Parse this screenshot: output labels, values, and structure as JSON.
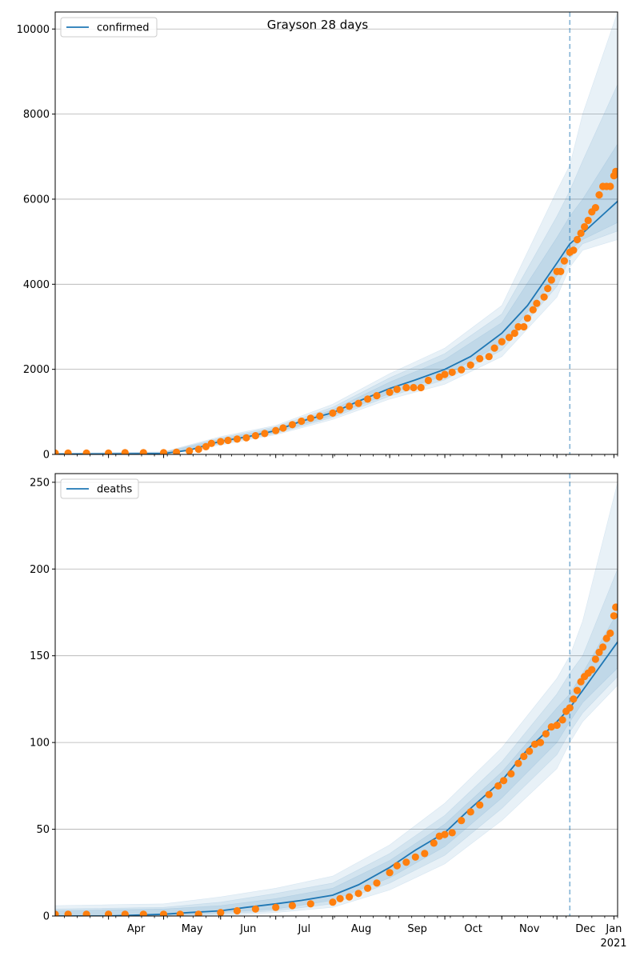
{
  "figure": {
    "title": "Grayson 28 days",
    "xtick_labels": [
      "Apr",
      "May",
      "Jun",
      "Jul",
      "Aug",
      "Sep",
      "Oct",
      "Nov",
      "Dec",
      "Jan"
    ],
    "year_label": "2021"
  },
  "colors": {
    "line": "#1f77b4",
    "band": "#1f77b4",
    "points": "#ff7f0e",
    "grid": "#b0b0b0",
    "vline": "#1f77b4"
  },
  "chart_data": [
    {
      "type": "line",
      "legend": "confirmed",
      "legend_position": "top-left",
      "grid": "horizontal",
      "x_range": [
        "2020-03-03",
        "2021-01-03"
      ],
      "ylim": [
        0,
        10400
      ],
      "yticks": [
        0,
        2000,
        4000,
        6000,
        8000,
        10000
      ],
      "ytick_labels": [
        "0",
        "2000",
        "4000",
        "6000",
        "8000",
        "10000"
      ],
      "forecast_start": "2020-12-08",
      "line": {
        "dates": [
          "2020-03-03",
          "2020-04-01",
          "2020-05-01",
          "2020-05-15",
          "2020-06-01",
          "2020-06-15",
          "2020-07-01",
          "2020-07-15",
          "2020-08-01",
          "2020-08-15",
          "2020-09-01",
          "2020-09-15",
          "2020-10-01",
          "2020-10-15",
          "2020-11-01",
          "2020-11-15",
          "2020-12-01",
          "2020-12-08",
          "2020-12-15",
          "2021-01-03"
        ],
        "values": [
          5,
          10,
          20,
          100,
          310,
          410,
          560,
          780,
          980,
          1250,
          1550,
          1750,
          2000,
          2300,
          2850,
          3500,
          4500,
          4950,
          5200,
          5950
        ]
      },
      "bands": [
        {
          "dates": [
            "2020-03-03",
            "2020-05-01",
            "2020-06-01",
            "2020-07-01",
            "2020-08-01",
            "2020-09-01",
            "2020-10-01",
            "2020-11-01",
            "2020-12-01",
            "2020-12-08",
            "2020-12-15",
            "2021-01-03"
          ],
          "lower": [
            0,
            0,
            220,
            460,
            820,
            1300,
            1650,
            2300,
            3700,
            4400,
            4800,
            5050
          ],
          "upper": [
            30,
            60,
            420,
            680,
            1180,
            1900,
            2500,
            3500,
            6200,
            6800,
            8000,
            10400
          ]
        },
        {
          "dates": [
            "2020-03-03",
            "2020-05-01",
            "2020-06-01",
            "2020-07-01",
            "2020-08-01",
            "2020-09-01",
            "2020-10-01",
            "2020-11-01",
            "2020-12-01",
            "2020-12-08",
            "2020-12-15",
            "2021-01-03"
          ],
          "lower": [
            0,
            0,
            250,
            490,
            870,
            1370,
            1750,
            2450,
            3950,
            4600,
            4950,
            5250
          ],
          "upper": [
            25,
            50,
            390,
            650,
            1110,
            1800,
            2370,
            3300,
            5600,
            6200,
            6900,
            8700
          ]
        },
        {
          "dates": [
            "2020-03-03",
            "2020-05-01",
            "2020-06-01",
            "2020-07-01",
            "2020-08-01",
            "2020-09-01",
            "2020-10-01",
            "2020-11-01",
            "2020-12-01",
            "2020-12-08",
            "2020-12-15",
            "2021-01-03"
          ],
          "lower": [
            0,
            5,
            275,
            520,
            915,
            1430,
            1850,
            2600,
            4200,
            4800,
            5050,
            5450
          ],
          "upper": [
            20,
            40,
            360,
            610,
            1050,
            1700,
            2230,
            3100,
            5100,
            5600,
            6000,
            7300
          ]
        }
      ],
      "points": {
        "dates": [
          "2020-03-03",
          "2020-03-10",
          "2020-03-20",
          "2020-04-01",
          "2020-04-10",
          "2020-04-20",
          "2020-05-01",
          "2020-05-08",
          "2020-05-15",
          "2020-05-20",
          "2020-05-24",
          "2020-05-27",
          "2020-06-01",
          "2020-06-05",
          "2020-06-10",
          "2020-06-15",
          "2020-06-20",
          "2020-06-25",
          "2020-07-01",
          "2020-07-05",
          "2020-07-10",
          "2020-07-15",
          "2020-07-20",
          "2020-07-25",
          "2020-08-01",
          "2020-08-05",
          "2020-08-10",
          "2020-08-15",
          "2020-08-20",
          "2020-08-25",
          "2020-09-01",
          "2020-09-05",
          "2020-09-10",
          "2020-09-14",
          "2020-09-18",
          "2020-09-22",
          "2020-09-28",
          "2020-10-01",
          "2020-10-05",
          "2020-10-10",
          "2020-10-15",
          "2020-10-20",
          "2020-10-25",
          "2020-10-28",
          "2020-11-01",
          "2020-11-05",
          "2020-11-08",
          "2020-11-10",
          "2020-11-13",
          "2020-11-15",
          "2020-11-18",
          "2020-11-20",
          "2020-11-24",
          "2020-11-26",
          "2020-11-28",
          "2020-12-01",
          "2020-12-03",
          "2020-12-05",
          "2020-12-08",
          "2020-12-10",
          "2020-12-12",
          "2020-12-14",
          "2020-12-16",
          "2020-12-18",
          "2020-12-20",
          "2020-12-22",
          "2020-12-24",
          "2020-12-26",
          "2020-12-28",
          "2020-12-30",
          "2021-01-01",
          "2021-01-02"
        ],
        "values": [
          30,
          30,
          30,
          30,
          40,
          40,
          40,
          50,
          80,
          120,
          180,
          260,
          300,
          330,
          360,
          390,
          440,
          490,
          560,
          620,
          700,
          780,
          850,
          900,
          970,
          1050,
          1130,
          1200,
          1300,
          1380,
          1460,
          1530,
          1570,
          1570,
          1570,
          1740,
          1820,
          1880,
          1930,
          1990,
          2100,
          2250,
          2300,
          2500,
          2650,
          2750,
          2850,
          3000,
          3000,
          3200,
          3400,
          3550,
          3700,
          3900,
          4100,
          4300,
          4300,
          4550,
          4750,
          4800,
          5050,
          5200,
          5350,
          5500,
          5700,
          5800,
          6100,
          6300,
          6300,
          6300,
          6550,
          6650
        ]
      }
    },
    {
      "type": "line",
      "legend": "deaths",
      "legend_position": "top-left",
      "grid": "horizontal",
      "x_range": [
        "2020-03-03",
        "2021-01-03"
      ],
      "ylim": [
        0,
        255
      ],
      "yticks": [
        0,
        50,
        100,
        150,
        200,
        250
      ],
      "ytick_labels": [
        "0",
        "50",
        "100",
        "150",
        "200",
        "250"
      ],
      "forecast_start": "2020-12-08",
      "line": {
        "dates": [
          "2020-03-03",
          "2020-04-01",
          "2020-05-01",
          "2020-05-15",
          "2020-06-01",
          "2020-06-15",
          "2020-07-01",
          "2020-07-15",
          "2020-08-01",
          "2020-08-15",
          "2020-09-01",
          "2020-09-15",
          "2020-10-01",
          "2020-10-15",
          "2020-11-01",
          "2020-11-15",
          "2020-12-01",
          "2020-12-08",
          "2020-12-15",
          "2021-01-03"
        ],
        "values": [
          0,
          0,
          1,
          2,
          3,
          5,
          7,
          9,
          12,
          18,
          28,
          38,
          48,
          62,
          78,
          96,
          112,
          120,
          130,
          158
        ]
      },
      "bands": [
        {
          "dates": [
            "2020-03-03",
            "2020-05-01",
            "2020-06-01",
            "2020-07-01",
            "2020-08-01",
            "2020-09-01",
            "2020-10-01",
            "2020-11-01",
            "2020-12-01",
            "2020-12-08",
            "2020-12-15",
            "2021-01-03"
          ],
          "lower": [
            0,
            0,
            0,
            2,
            5,
            15,
            30,
            55,
            85,
            100,
            112,
            133
          ],
          "upper": [
            6,
            7,
            11,
            16,
            23,
            41,
            65,
            97,
            137,
            150,
            170,
            250
          ]
        },
        {
          "dates": [
            "2020-03-03",
            "2020-05-01",
            "2020-06-01",
            "2020-07-01",
            "2020-08-01",
            "2020-09-01",
            "2020-10-01",
            "2020-11-01",
            "2020-12-01",
            "2020-12-08",
            "2020-12-15",
            "2021-01-03"
          ],
          "lower": [
            0,
            0,
            1,
            3,
            7,
            19,
            35,
            62,
            93,
            106,
            117,
            138
          ],
          "upper": [
            4,
            5,
            8,
            13,
            19,
            36,
            58,
            89,
            128,
            140,
            150,
            200
          ]
        },
        {
          "dates": [
            "2020-03-03",
            "2020-05-01",
            "2020-06-01",
            "2020-07-01",
            "2020-08-01",
            "2020-09-01",
            "2020-10-01",
            "2020-11-01",
            "2020-12-01",
            "2020-12-08",
            "2020-12-15",
            "2021-01-03"
          ],
          "lower": [
            0,
            0,
            2,
            4,
            9,
            22,
            40,
            68,
            100,
            112,
            123,
            143
          ],
          "upper": [
            3,
            4,
            6,
            10,
            16,
            32,
            53,
            83,
            120,
            128,
            140,
            175
          ]
        }
      ],
      "points": {
        "dates": [
          "2020-03-03",
          "2020-03-10",
          "2020-03-20",
          "2020-04-01",
          "2020-04-10",
          "2020-04-20",
          "2020-05-01",
          "2020-05-10",
          "2020-05-20",
          "2020-06-01",
          "2020-06-10",
          "2020-06-20",
          "2020-07-01",
          "2020-07-10",
          "2020-07-20",
          "2020-08-01",
          "2020-08-05",
          "2020-08-10",
          "2020-08-15",
          "2020-08-20",
          "2020-08-25",
          "2020-09-01",
          "2020-09-05",
          "2020-09-10",
          "2020-09-15",
          "2020-09-20",
          "2020-09-25",
          "2020-09-28",
          "2020-10-01",
          "2020-10-05",
          "2020-10-10",
          "2020-10-15",
          "2020-10-20",
          "2020-10-25",
          "2020-10-30",
          "2020-11-02",
          "2020-11-06",
          "2020-11-10",
          "2020-11-13",
          "2020-11-16",
          "2020-11-19",
          "2020-11-22",
          "2020-11-25",
          "2020-11-28",
          "2020-12-01",
          "2020-12-04",
          "2020-12-06",
          "2020-12-08",
          "2020-12-10",
          "2020-12-12",
          "2020-12-14",
          "2020-12-16",
          "2020-12-18",
          "2020-12-20",
          "2020-12-22",
          "2020-12-24",
          "2020-12-26",
          "2020-12-28",
          "2020-12-30",
          "2021-01-01",
          "2021-01-02"
        ],
        "values": [
          1,
          1,
          1,
          1,
          1,
          1,
          1,
          1,
          1,
          2,
          3,
          4,
          5,
          6,
          7,
          8,
          10,
          11,
          13,
          16,
          19,
          25,
          29,
          31,
          34,
          36,
          42,
          46,
          47,
          48,
          55,
          60,
          64,
          70,
          75,
          78,
          82,
          88,
          92,
          95,
          99,
          100,
          105,
          109,
          110,
          113,
          118,
          120,
          125,
          130,
          135,
          138,
          140,
          142,
          148,
          152,
          155,
          160,
          163,
          173,
          178
        ]
      }
    }
  ]
}
